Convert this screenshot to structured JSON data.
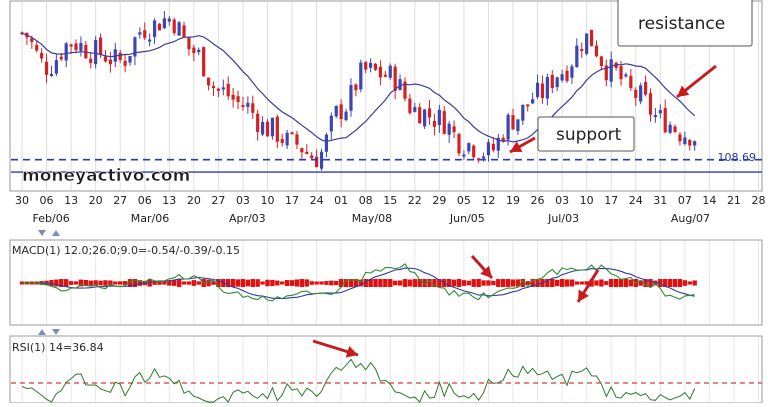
{
  "watermark": "moneyactivo.com",
  "chart_data": [
    {
      "panel": "price",
      "type": "candlestick",
      "x_day_labels": [
        "30",
        "06",
        "13",
        "20",
        "27",
        "06",
        "13",
        "20",
        "27",
        "03",
        "10",
        "17",
        "24",
        "01",
        "08",
        "15",
        "22",
        "29",
        "05",
        "12",
        "19",
        "26",
        "03",
        "10",
        "17",
        "24",
        "31",
        "07",
        "14",
        "21",
        "28"
      ],
      "x_month_labels": [
        "Feb/06",
        "Mar/06",
        "Apr/03",
        "May/08",
        "Jun/05",
        "Jul/03",
        "Aug/07"
      ],
      "price_tag": "108.69",
      "support_level": 108.95,
      "lower_band": 108.69,
      "annotations": {
        "resistance": "resistance",
        "support": "support"
      },
      "moving_average_color": "#3a3aa0",
      "up_color": "#3a46b5",
      "down_color": "#d62020"
    },
    {
      "panel": "macd",
      "type": "line+histogram",
      "legend": "MACD(1) 12.0;26.0;9.0=-0.54/-0.39/-0.15",
      "series": [
        {
          "color": "#2c3ea0"
        },
        {
          "color": "#2f8c2f"
        },
        {
          "color": "#e01010"
        }
      ]
    },
    {
      "panel": "rsi",
      "type": "line",
      "legend": "RSI(1) 14=36.84",
      "line_color": "#2f7a2f",
      "reference_line_color": "#d63b3b"
    }
  ]
}
